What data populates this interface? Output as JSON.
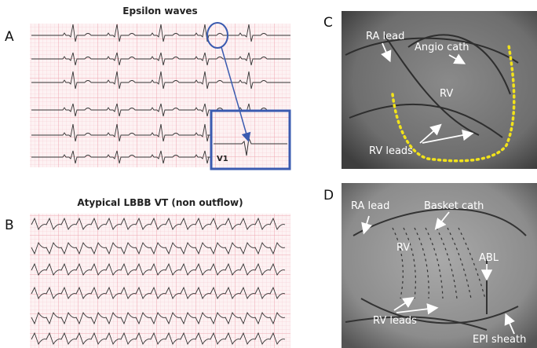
{
  "panels": [
    {
      "label": "A",
      "title": "Epsilon waves",
      "inset_label": "V1"
    },
    {
      "label": "B",
      "title": "Atypical LBBB VT (non outflow)"
    },
    {
      "label": "C",
      "annotations": [
        "RA lead",
        "Angio cath",
        "RV",
        "RV leads"
      ]
    },
    {
      "label": "D",
      "annotations": [
        "RA lead",
        "Basket cath",
        "RV",
        "ABL",
        "RV leads",
        "EPI sheath"
      ]
    }
  ]
}
